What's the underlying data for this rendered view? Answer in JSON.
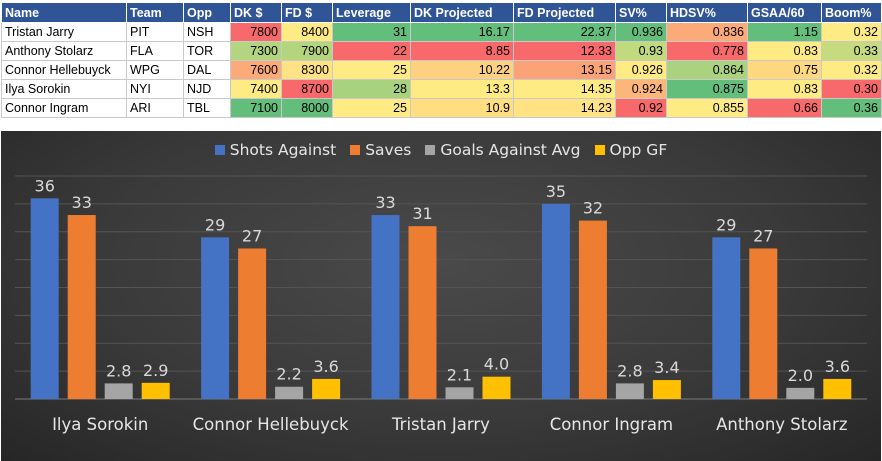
{
  "table": {
    "columns": [
      "Name",
      "Team",
      "Opp",
      "DK $",
      "FD $",
      "Leverage",
      "DK Projected",
      "FD Projected",
      "SV%",
      "HDSV%",
      "GSAA/60",
      "Boom%"
    ],
    "rows": [
      [
        "Tristan Jarry",
        "PIT",
        "NSH",
        "7800",
        "8400",
        "31",
        "16.17",
        "22.37",
        "0.936",
        "0.836",
        "1.15",
        "0.32"
      ],
      [
        "Anthony Stolarz",
        "FLA",
        "TOR",
        "7300",
        "7900",
        "22",
        "8.85",
        "12.33",
        "0.93",
        "0.778",
        "0.83",
        "0.33"
      ],
      [
        "Connor Hellebuyck",
        "WPG",
        "DAL",
        "7600",
        "8300",
        "25",
        "10.22",
        "13.15",
        "0.926",
        "0.864",
        "0.75",
        "0.32"
      ],
      [
        "Ilya Sorokin",
        "NYI",
        "NJD",
        "7400",
        "8700",
        "28",
        "13.3",
        "14.35",
        "0.924",
        "0.875",
        "0.83",
        "0.30"
      ],
      [
        "Connor Ingram",
        "ARI",
        "TBL",
        "7100",
        "8000",
        "25",
        "10.9",
        "14.23",
        "0.92",
        "0.855",
        "0.66",
        "0.36"
      ]
    ],
    "cell_colors": [
      [
        "#ffffff",
        "#ffffff",
        "#ffffff",
        "#f8696b",
        "#ffeb84",
        "#63be7b",
        "#63be7b",
        "#63be7b",
        "#63be7b",
        "#fcaa78",
        "#63be7b",
        "#ffeb84"
      ],
      [
        "#ffffff",
        "#ffffff",
        "#ffffff",
        "#b4d57f",
        "#b3d57e",
        "#f8696b",
        "#f8696b",
        "#f8696b",
        "#c1d97f",
        "#f8696b",
        "#ffeb84",
        "#c6db80"
      ],
      [
        "#ffffff",
        "#ffffff",
        "#ffffff",
        "#fcaa78",
        "#ffe283",
        "#ffeb84",
        "#fdd17f",
        "#fba276",
        "#ffeb84",
        "#aad27f",
        "#fed880",
        "#ffeb84"
      ],
      [
        "#ffffff",
        "#ffffff",
        "#ffffff",
        "#ffeb84",
        "#f8696b",
        "#a9d27f",
        "#ffeb84",
        "#ffeb84",
        "#fcb67a",
        "#63be7b",
        "#ffeb84",
        "#f8696b"
      ],
      [
        "#ffffff",
        "#ffffff",
        "#ffffff",
        "#63be7b",
        "#63be7b",
        "#ffeb84",
        "#fede81",
        "#ffe283",
        "#f8696b",
        "#ffeb84",
        "#f8696b",
        "#63be7b"
      ]
    ]
  },
  "chart_data": {
    "type": "bar",
    "title": "",
    "xlabel": "",
    "ylabel": "",
    "ylim": [
      0,
      40
    ],
    "legend_position": "top",
    "grid": true,
    "categories": [
      "Ilya Sorokin",
      "Connor Hellebuyck",
      "Tristan Jarry",
      "Connor Ingram",
      "Anthony Stolarz"
    ],
    "series": [
      {
        "name": "Shots Against",
        "color": "#4472c4",
        "values": [
          36,
          29,
          33,
          35,
          29
        ],
        "labels": [
          "36",
          "29",
          "33",
          "35",
          "29"
        ]
      },
      {
        "name": "Saves",
        "color": "#ed7d31",
        "values": [
          33,
          27,
          31,
          32,
          27
        ],
        "labels": [
          "33",
          "27",
          "31",
          "32",
          "27"
        ]
      },
      {
        "name": "Goals Against Avg",
        "color": "#a5a5a5",
        "values": [
          2.8,
          2.2,
          2.1,
          2.8,
          2.0
        ],
        "labels": [
          "2.8",
          "2.2",
          "2.1",
          "2.8",
          "2.0"
        ]
      },
      {
        "name": "Opp GF",
        "color": "#ffc000",
        "values": [
          2.9,
          3.6,
          4.0,
          3.4,
          3.6
        ],
        "labels": [
          "2.9",
          "3.6",
          "4.0",
          "3.4",
          "3.6"
        ]
      }
    ]
  }
}
